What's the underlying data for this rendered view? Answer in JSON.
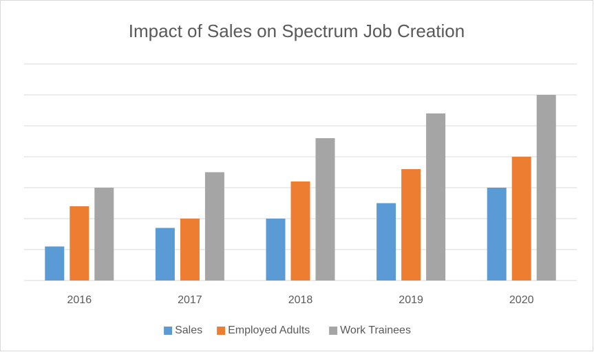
{
  "chart_data": {
    "type": "bar",
    "title": "Impact of Sales on Spectrum Job  Creation",
    "categories": [
      "2016",
      "2017",
      "2018",
      "2019",
      "2020"
    ],
    "series": [
      {
        "name": "Sales",
        "color": "#5b9bd5",
        "values": [
          1.1,
          1.7,
          2,
          2.5,
          3
        ]
      },
      {
        "name": "Employed Adults",
        "color": "#ed7d31",
        "values": [
          2.4,
          2,
          3.2,
          3.6,
          4
        ]
      },
      {
        "name": "Work Trainees",
        "color": "#a5a5a5",
        "values": [
          3,
          3.5,
          4.6,
          5.4,
          6
        ]
      }
    ],
    "ylim": [
      0,
      7
    ],
    "yticks": [
      0,
      1,
      2,
      3,
      4,
      5,
      6,
      7
    ],
    "grid": true,
    "legend": "bottom"
  }
}
